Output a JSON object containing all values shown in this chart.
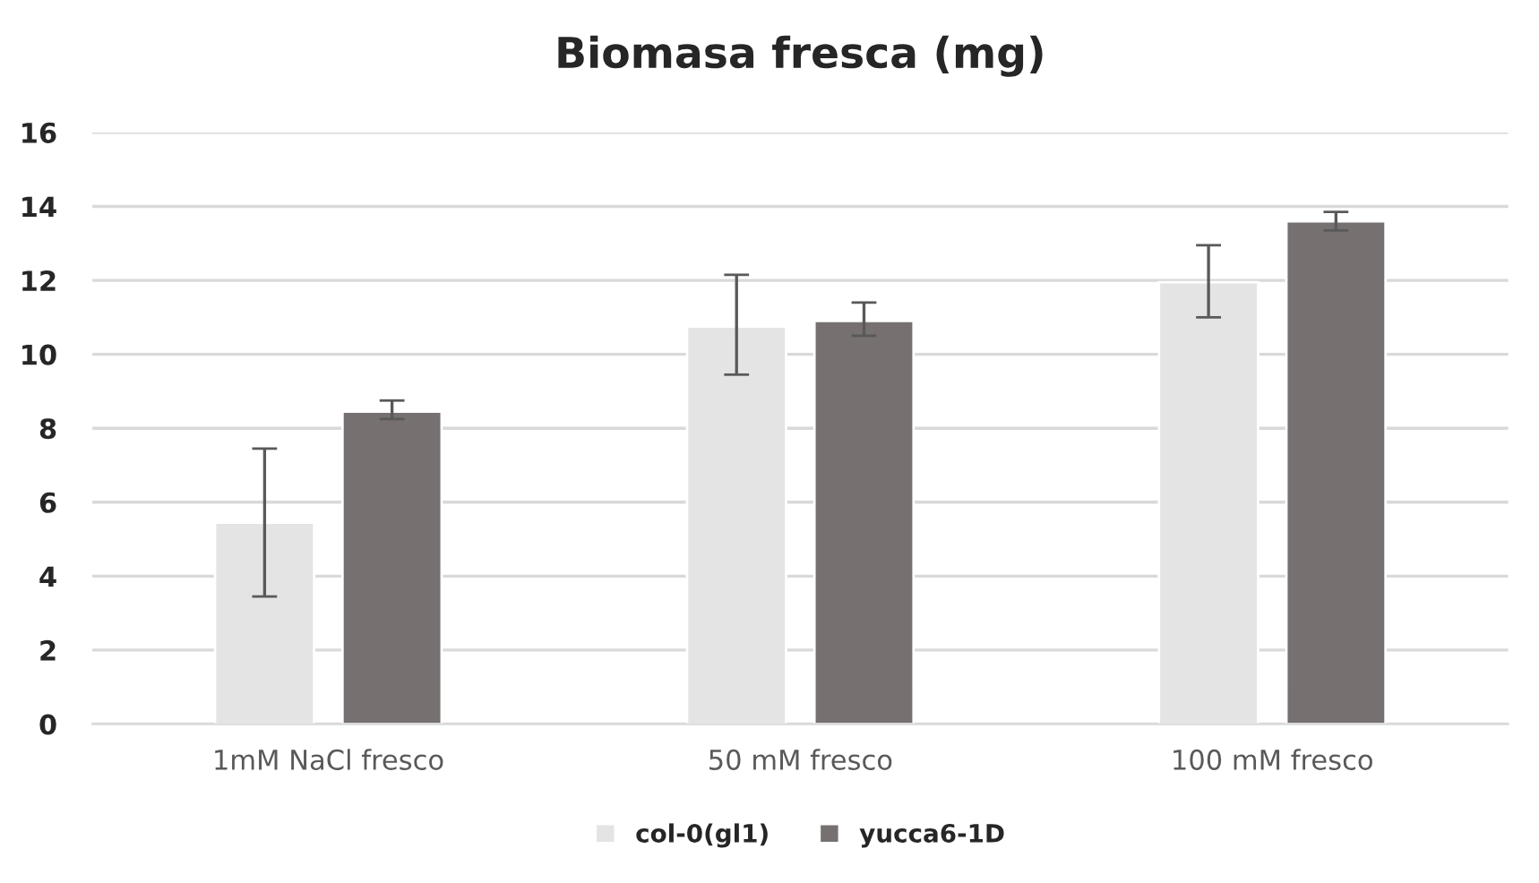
{
  "chart_data": {
    "type": "bar",
    "title": "Biomasa fresca (mg)",
    "categories": [
      "1mM NaCl fresco",
      "50 mM fresco",
      "100 mM fresco"
    ],
    "series": [
      {
        "name": "col-0(gl1)",
        "color": "#e4e4e4",
        "values": [
          5.45,
          10.75,
          11.95
        ],
        "errors": [
          [
            3.45,
            7.45
          ],
          [
            9.45,
            12.15
          ],
          [
            11.0,
            12.95
          ]
        ]
      },
      {
        "name": "yucca6-1D",
        "color": "#767170",
        "values": [
          8.45,
          10.9,
          13.6
        ],
        "errors": [
          [
            8.25,
            8.75
          ],
          [
            10.5,
            11.4
          ],
          [
            13.35,
            13.85
          ]
        ]
      }
    ],
    "ylim": [
      0,
      16
    ],
    "yticks": [
      0,
      2,
      4,
      6,
      8,
      10,
      12,
      14,
      16
    ],
    "grid": "y",
    "legend": "bottom"
  }
}
